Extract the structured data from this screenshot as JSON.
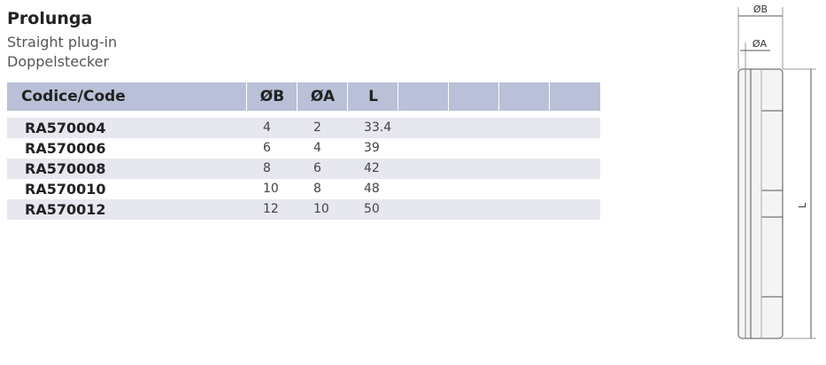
{
  "header": {
    "title": "Prolunga",
    "subtitle_it": "Straight plug-in",
    "subtitle_de": "Doppelstecker"
  },
  "table": {
    "columns": [
      "Codice/Code",
      "ØB",
      "ØA",
      "L"
    ],
    "rows": [
      [
        "RA570004",
        4,
        2,
        33.4
      ],
      [
        "RA570006",
        6,
        4,
        39
      ],
      [
        "RA570008",
        8,
        6,
        42
      ],
      [
        "RA570010",
        10,
        8,
        48
      ],
      [
        "RA570012",
        12,
        10,
        50
      ]
    ]
  },
  "diagram": {
    "labels": [
      "ØB",
      "ØA",
      "L"
    ]
  }
}
